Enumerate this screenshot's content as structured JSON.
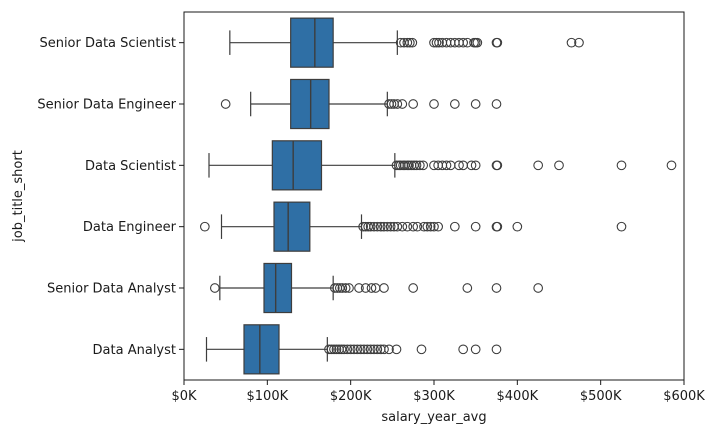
{
  "chart_data": {
    "type": "boxplot",
    "orientation": "horizontal",
    "xlabel": "salary_year_avg",
    "ylabel": "job_title_short",
    "xlim": [
      0,
      600000
    ],
    "xticks": [
      0,
      100000,
      200000,
      300000,
      400000,
      500000,
      600000
    ],
    "xtick_labels": [
      "$0K",
      "$100K",
      "$200K",
      "$300K",
      "$400K",
      "$500K",
      "$600K"
    ],
    "grid": false,
    "box_color": "#2f6fa5",
    "categories": [
      "Senior Data Scientist",
      "Senior Data Engineer",
      "Data Scientist",
      "Data Engineer",
      "Senior Data Analyst",
      "Data Analyst"
    ],
    "boxes": [
      {
        "category": "Senior Data Scientist",
        "whisker_low": 55000,
        "q1": 128000,
        "median": 157000,
        "q3": 179000,
        "whisker_high": 256000,
        "outliers": [
          260000,
          264000,
          268000,
          271000,
          274000,
          300000,
          303000,
          306000,
          310000,
          315000,
          320000,
          325000,
          330000,
          335000,
          340000,
          348000,
          350000,
          352000,
          375000,
          376000,
          465000,
          474000
        ]
      },
      {
        "category": "Senior Data Engineer",
        "whisker_low": 80000,
        "q1": 128000,
        "median": 152000,
        "q3": 174000,
        "whisker_high": 244000,
        "outliers": [
          50000,
          246000,
          249000,
          252000,
          256000,
          262000,
          275000,
          300000,
          325000,
          350000,
          375000
        ]
      },
      {
        "category": "Data Scientist",
        "whisker_low": 30000,
        "q1": 106000,
        "median": 131000,
        "q3": 165000,
        "whisker_high": 253000,
        "outliers": [
          255000,
          258000,
          260000,
          263000,
          265000,
          268000,
          270000,
          273000,
          276000,
          279000,
          283000,
          287000,
          300000,
          305000,
          310000,
          315000,
          320000,
          330000,
          335000,
          345000,
          350000,
          375000,
          376000,
          425000,
          450000,
          525000,
          585000
        ]
      },
      {
        "category": "Data Engineer",
        "whisker_low": 45000,
        "q1": 108000,
        "median": 125000,
        "q3": 151000,
        "whisker_high": 213000,
        "outliers": [
          25000,
          215000,
          218000,
          221000,
          224000,
          228000,
          232000,
          236000,
          240000,
          244000,
          248000,
          252000,
          256000,
          262000,
          268000,
          275000,
          280000,
          288000,
          292000,
          296000,
          300000,
          305000,
          325000,
          350000,
          375000,
          376000,
          400000,
          525000
        ]
      },
      {
        "category": "Senior Data Analyst",
        "whisker_low": 43000,
        "q1": 96000,
        "median": 110000,
        "q3": 129000,
        "whisker_high": 179000,
        "outliers": [
          37000,
          181000,
          184000,
          187000,
          190000,
          194000,
          198000,
          210000,
          218000,
          225000,
          230000,
          240000,
          275000,
          340000,
          375000,
          425000
        ]
      },
      {
        "category": "Data Analyst",
        "whisker_low": 27000,
        "q1": 72000,
        "median": 91000,
        "q3": 114000,
        "whisker_high": 172000,
        "outliers": [
          174000,
          177000,
          180000,
          183000,
          186000,
          189000,
          192000,
          196000,
          200000,
          204000,
          208000,
          212000,
          216000,
          220000,
          224000,
          228000,
          232000,
          236000,
          240000,
          246000,
          255000,
          285000,
          335000,
          350000,
          375000
        ]
      }
    ]
  }
}
